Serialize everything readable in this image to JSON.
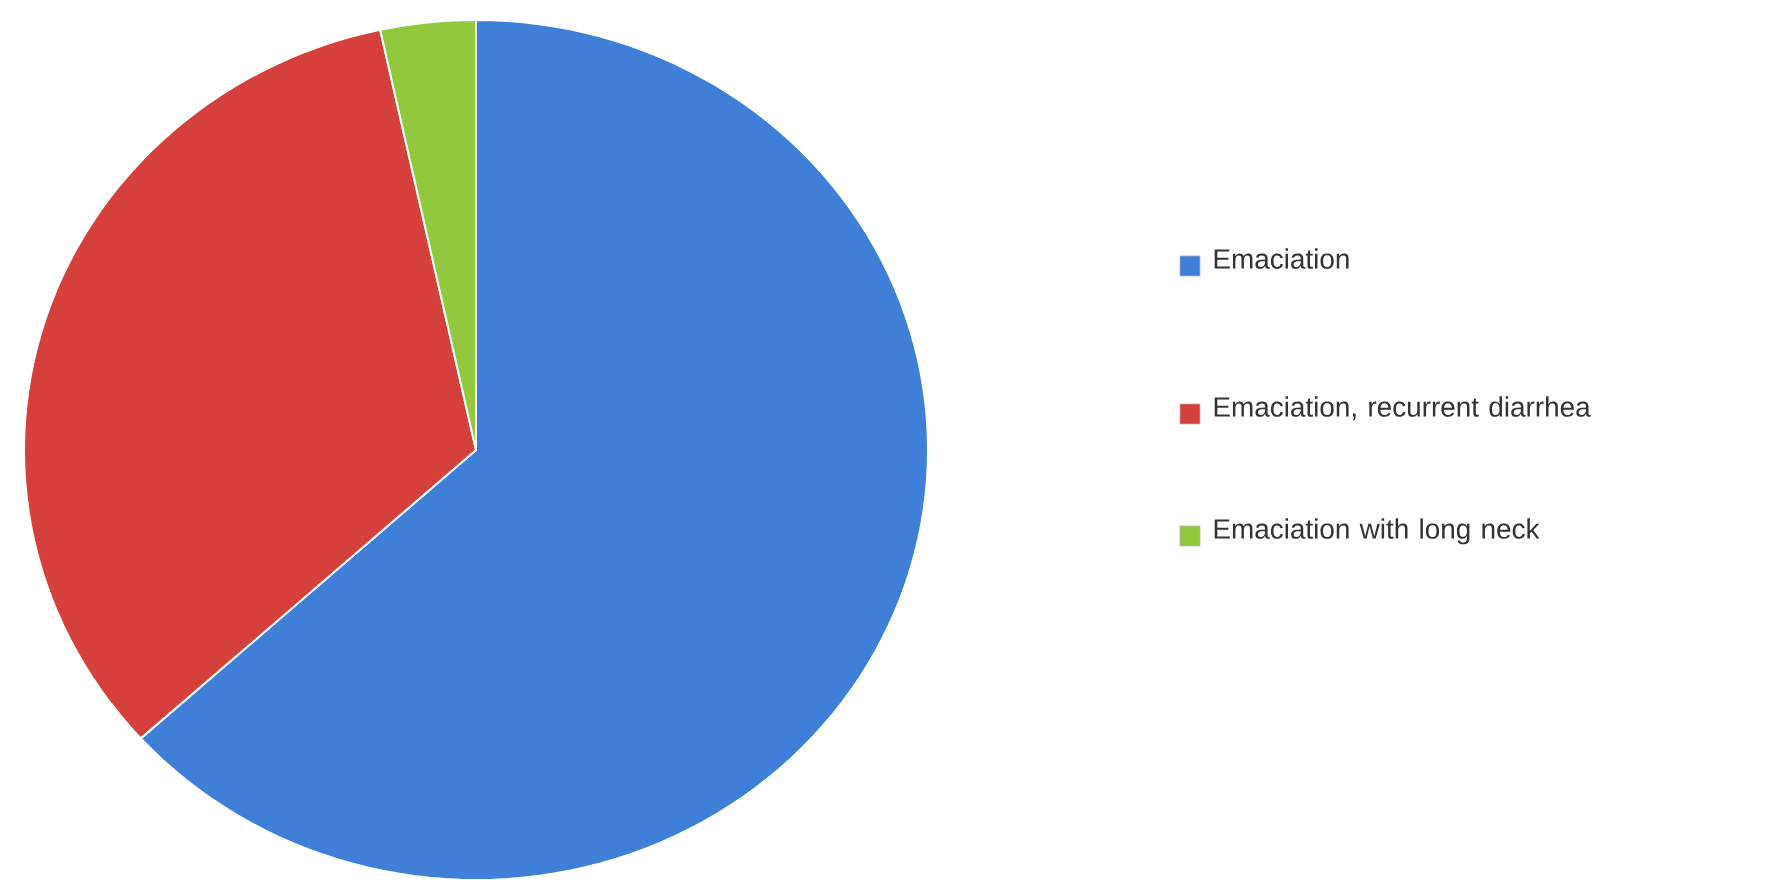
{
  "chart_data": {
    "type": "pie",
    "categories": [
      "Emaciation",
      "Emaciation, recurrent diarrhea",
      "Emaciation with long neck"
    ],
    "values": [
      63.3,
      33.3,
      3.4
    ],
    "colors": [
      "#3f7fd8",
      "#d6403c",
      "#92c83e"
    ],
    "legend": "right"
  }
}
